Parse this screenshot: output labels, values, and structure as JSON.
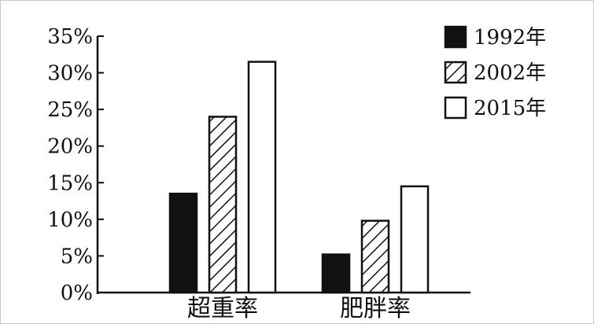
{
  "chart_data": {
    "type": "bar",
    "categories": [
      "超重率",
      "肥胖率"
    ],
    "series": [
      {
        "name": "1992年",
        "values": [
          13.5,
          5.2
        ],
        "pattern": "solid"
      },
      {
        "name": "2002年",
        "values": [
          24.0,
          9.8
        ],
        "pattern": "hatch"
      },
      {
        "name": "2015年",
        "values": [
          31.5,
          14.5
        ],
        "pattern": "hollow"
      }
    ],
    "y_ticks": [
      "0%",
      "5%",
      "10%",
      "15%",
      "20%",
      "25%",
      "30%",
      "35%"
    ],
    "ylim": [
      0,
      35
    ],
    "title": "",
    "xlabel": "",
    "ylabel": "",
    "grid": false,
    "legend_position": "top-right",
    "colors": {
      "ink": "#111111",
      "background": "#ffffff"
    }
  }
}
